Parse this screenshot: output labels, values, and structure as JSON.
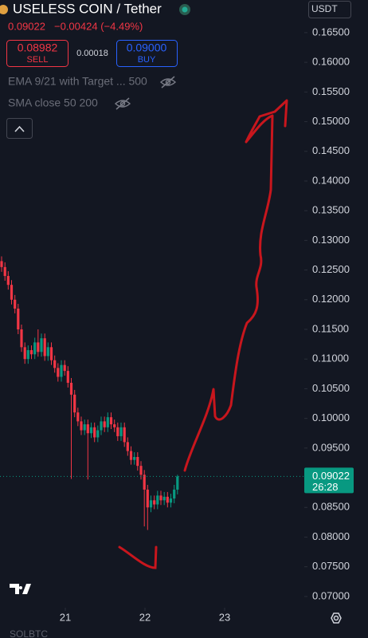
{
  "header": {
    "symbol": "USELESS COIN / Tether",
    "price": "0.09022",
    "change": "−0.00424 (−4.49%)",
    "sell_price": "0.08982",
    "sell_label": "SELL",
    "spread": "0.00018",
    "buy_price": "0.09000",
    "buy_label": "BUY",
    "indicator_1": "EMA 9/21 with Target ... 500",
    "indicator_2": "SMA close 50 200",
    "currency": "USDT",
    "footer_symbol": "SOLBTC"
  },
  "chart_data": {
    "type": "candlestick",
    "title": "USELESS COIN / Tether",
    "up_color": "#089981",
    "down_color": "#f23645",
    "x": [
      20.2,
      20.242,
      20.283,
      20.325,
      20.367,
      20.408,
      20.45,
      20.492,
      20.533,
      20.575,
      20.617,
      20.658,
      20.7,
      20.742,
      20.783,
      20.825,
      20.867,
      20.908,
      20.95,
      20.992,
      21.033,
      21.075,
      21.117,
      21.158,
      21.2,
      21.242,
      21.283,
      21.325,
      21.367,
      21.408,
      21.45,
      21.492,
      21.533,
      21.575,
      21.617,
      21.658,
      21.7,
      21.742,
      21.783,
      21.825,
      21.867,
      21.908,
      21.95,
      21.992,
      22.033,
      22.075,
      22.117,
      22.158,
      22.2,
      22.242,
      22.283,
      22.325,
      22.367,
      22.408
    ],
    "open": [
      0.1265,
      0.1255,
      0.124,
      0.1225,
      0.12,
      0.1185,
      0.115,
      0.112,
      0.11,
      0.1115,
      0.1108,
      0.1128,
      0.1112,
      0.1135,
      0.1105,
      0.112,
      0.1098,
      0.1085,
      0.107,
      0.109,
      0.108,
      0.106,
      0.104,
      0.101,
      0.0995,
      0.098,
      0.099,
      0.0975,
      0.0985,
      0.0968,
      0.098,
      0.0995,
      0.0985,
      0.1002,
      0.099,
      0.0985,
      0.097,
      0.0985,
      0.096,
      0.0945,
      0.093,
      0.0935,
      0.092,
      0.0905,
      0.088,
      0.085,
      0.0862,
      0.0855,
      0.087,
      0.0862,
      0.0868,
      0.0858,
      0.0865,
      0.088
    ],
    "high": [
      0.1273,
      0.1263,
      0.1248,
      0.1233,
      0.1208,
      0.1193,
      0.1158,
      0.1128,
      0.1123,
      0.1123,
      0.1136,
      0.115,
      0.1143,
      0.1143,
      0.1128,
      0.1128,
      0.1106,
      0.1093,
      0.1098,
      0.1098,
      0.1088,
      0.1068,
      0.1048,
      0.1018,
      0.1003,
      0.0998,
      0.0998,
      0.0993,
      0.0993,
      0.0988,
      0.1003,
      0.1003,
      0.101,
      0.101,
      0.0998,
      0.0993,
      0.0993,
      0.0993,
      0.0968,
      0.0953,
      0.0943,
      0.0943,
      0.0928,
      0.0913,
      0.0888,
      0.087,
      0.087,
      0.0878,
      0.0878,
      0.0876,
      0.0876,
      0.0873,
      0.0888,
      0.0905
    ],
    "low": [
      0.1247,
      0.1232,
      0.1217,
      0.1192,
      0.1177,
      0.1142,
      0.1112,
      0.1092,
      0.1092,
      0.11,
      0.11,
      0.1104,
      0.1104,
      0.1097,
      0.1097,
      0.109,
      0.1077,
      0.1062,
      0.1062,
      0.1072,
      0.1052,
      0.0898,
      0.1002,
      0.0987,
      0.0972,
      0.0972,
      0.0897,
      0.0967,
      0.096,
      0.096,
      0.0972,
      0.0977,
      0.0977,
      0.0982,
      0.0977,
      0.0962,
      0.0962,
      0.0952,
      0.0937,
      0.0922,
      0.0922,
      0.0912,
      0.0897,
      0.0818,
      0.0812,
      0.0842,
      0.0847,
      0.0847,
      0.0854,
      0.0854,
      0.085,
      0.085,
      0.0857,
      0.0872
    ],
    "close": [
      0.1255,
      0.124,
      0.1225,
      0.12,
      0.1185,
      0.115,
      0.112,
      0.11,
      0.1115,
      0.1108,
      0.1128,
      0.1112,
      0.1135,
      0.1105,
      0.112,
      0.1098,
      0.1085,
      0.107,
      0.109,
      0.108,
      0.106,
      0.104,
      0.101,
      0.0995,
      0.098,
      0.099,
      0.0975,
      0.0985,
      0.0968,
      0.098,
      0.0995,
      0.0985,
      0.1002,
      0.099,
      0.0985,
      0.097,
      0.0985,
      0.096,
      0.0945,
      0.093,
      0.0935,
      0.092,
      0.0905,
      0.088,
      0.085,
      0.0862,
      0.0855,
      0.087,
      0.0862,
      0.0868,
      0.0858,
      0.0865,
      0.088,
      0.09022
    ],
    "xlim": [
      20.18,
      23.98
    ],
    "xticks": [
      21,
      22,
      23
    ],
    "ylim": [
      0.0677,
      0.1705
    ],
    "yticks": [
      {
        "value": 0.07,
        "label": "0.07000"
      },
      {
        "value": 0.075,
        "label": "0.07500"
      },
      {
        "value": 0.08,
        "label": "0.08000"
      },
      {
        "value": 0.085,
        "label": "0.08500"
      },
      {
        "value": 0.09,
        "label": "0.09000"
      },
      {
        "value": 0.095,
        "label": "0.09500"
      },
      {
        "value": 0.1,
        "label": "0.10000"
      },
      {
        "value": 0.105,
        "label": "0.10500"
      },
      {
        "value": 0.11,
        "label": "0.11000"
      },
      {
        "value": 0.115,
        "label": "0.11500"
      },
      {
        "value": 0.12,
        "label": "0.12000"
      },
      {
        "value": 0.125,
        "label": "0.12500"
      },
      {
        "value": 0.13,
        "label": "0.13000"
      },
      {
        "value": 0.135,
        "label": "0.13500"
      },
      {
        "value": 0.14,
        "label": "0.14000"
      },
      {
        "value": 0.145,
        "label": "0.14500"
      },
      {
        "value": 0.15,
        "label": "0.15000"
      },
      {
        "value": 0.155,
        "label": "0.15500"
      },
      {
        "value": 0.16,
        "label": "0.16000"
      },
      {
        "value": 0.165,
        "label": "0.16500"
      }
    ],
    "last_price": {
      "value": 0.09022,
      "label": "0.09022"
    },
    "countdown": "26:28"
  }
}
